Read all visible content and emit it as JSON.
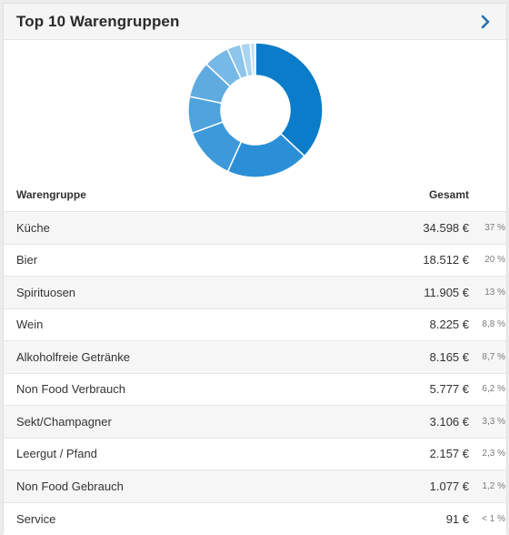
{
  "card": {
    "title": "Top 10 Warengruppen"
  },
  "table": {
    "col_name": "Warengruppe",
    "col_total": "Gesamt",
    "rows": [
      {
        "name": "Küche",
        "amount": "34.598 €",
        "pct": "37 %"
      },
      {
        "name": "Bier",
        "amount": "18.512 €",
        "pct": "20 %"
      },
      {
        "name": "Spirituosen",
        "amount": "11.905 €",
        "pct": "13 %"
      },
      {
        "name": "Wein",
        "amount": "8.225 €",
        "pct": "8,8 %"
      },
      {
        "name": "Alkoholfreie Getränke",
        "amount": "8.165 €",
        "pct": "8,7 %"
      },
      {
        "name": "Non Food Verbrauch",
        "amount": "5.777 €",
        "pct": "6,2 %"
      },
      {
        "name": "Sekt/Champagner",
        "amount": "3.106 €",
        "pct": "3,3 %"
      },
      {
        "name": "Leergut / Pfand",
        "amount": "2.157 €",
        "pct": "2,3 %"
      },
      {
        "name": "Non Food Gebrauch",
        "amount": "1.077 €",
        "pct": "1,2 %"
      },
      {
        "name": "Service",
        "amount": "91 €",
        "pct": "< 1 %"
      }
    ]
  },
  "chart_data": {
    "type": "pie",
    "categories": [
      "Küche",
      "Bier",
      "Spirituosen",
      "Wein",
      "Alkoholfreie Getränke",
      "Non Food Verbrauch",
      "Sekt/Champagner",
      "Leergut / Pfand",
      "Non Food Gebrauch",
      "Service"
    ],
    "values": [
      34598,
      18512,
      11905,
      8225,
      8165,
      5777,
      3106,
      2157,
      1077,
      91
    ],
    "colors": [
      "#0a7cc9",
      "#2b8fd7",
      "#3d99da",
      "#4ea3dd",
      "#5fabe0",
      "#77b9e6",
      "#8ec6eb",
      "#aad4f0",
      "#c4e1f5",
      "#e2f0fa"
    ],
    "donut": true
  },
  "icons": {
    "header_action": "chevron-right-icon"
  }
}
